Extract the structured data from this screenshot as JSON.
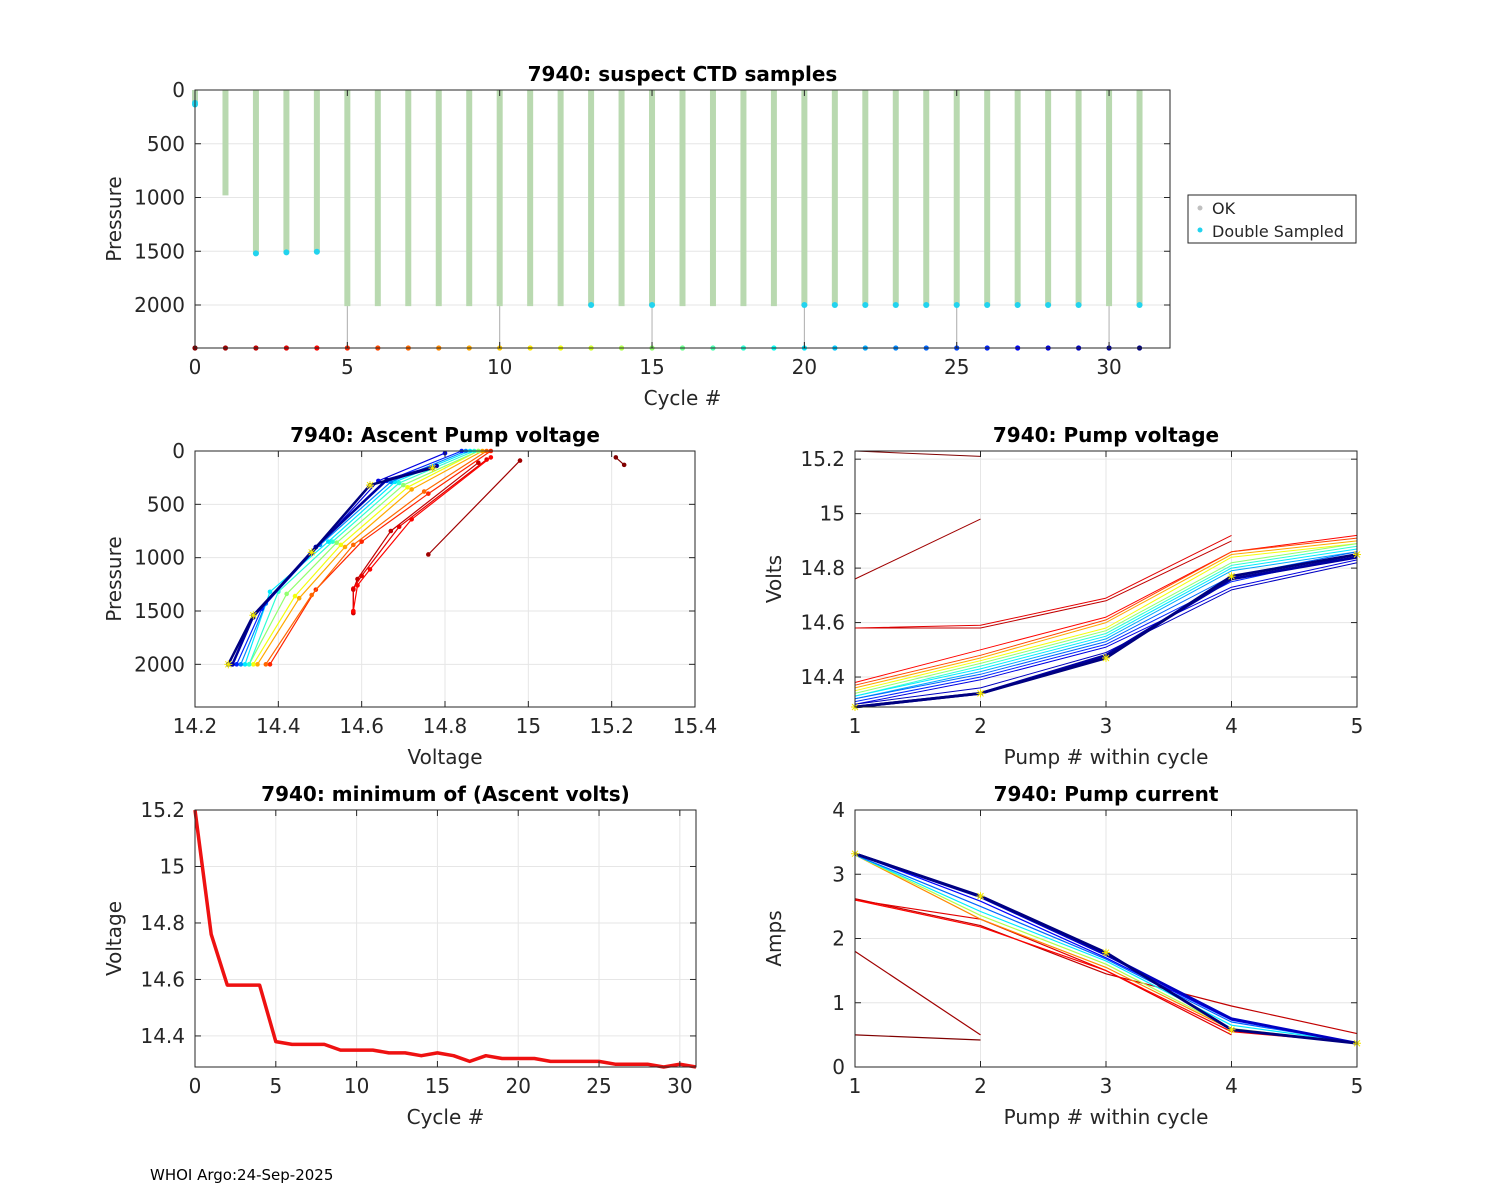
{
  "footer": "WHOI Argo:24-Sep-2025",
  "chart_data": [
    {
      "id": "suspect",
      "type": "scatter",
      "title": "7940: suspect CTD samples",
      "xlabel": "Cycle #",
      "ylabel": "Pressure",
      "xlim": [
        0,
        32
      ],
      "ylim": [
        0,
        2400
      ],
      "y_reversed": true,
      "xticks": [
        0,
        5,
        10,
        15,
        20,
        25,
        30
      ],
      "yticks": [
        0,
        500,
        1000,
        1500,
        2000
      ],
      "legend": [
        "OK",
        "Double Sampled"
      ],
      "legend_position": "outside-right",
      "ok_color": "#b9d9b0",
      "double_color": "#22d3ee",
      "series": [
        {
          "name": "OK",
          "cycles": [
            0,
            1,
            2,
            3,
            4,
            5,
            6,
            7,
            8,
            9,
            10,
            11,
            12,
            13,
            14,
            15,
            16,
            17,
            18,
            19,
            20,
            21,
            22,
            23,
            24,
            25,
            26,
            27,
            28,
            29,
            30,
            31
          ],
          "max_pressure": [
            110,
            980,
            1520,
            1510,
            1510,
            2010,
            2010,
            2010,
            2010,
            2010,
            2010,
            2010,
            2010,
            2010,
            2010,
            2010,
            2010,
            2010,
            2010,
            2010,
            2010,
            2010,
            2010,
            2010,
            2010,
            2010,
            2010,
            2010,
            2010,
            2010,
            2010,
            2010
          ]
        },
        {
          "name": "Double Sampled",
          "points": [
            [
              0,
              120
            ],
            [
              0,
              135
            ],
            [
              2,
              1520
            ],
            [
              3,
              1510
            ],
            [
              4,
              1505
            ],
            [
              13,
              2000
            ],
            [
              15,
              2000
            ],
            [
              20,
              2000
            ],
            [
              21,
              2000
            ],
            [
              22,
              2000
            ],
            [
              23,
              2000
            ],
            [
              24,
              2000
            ],
            [
              25,
              2000
            ],
            [
              26,
              2000
            ],
            [
              27,
              2000
            ],
            [
              28,
              2000
            ],
            [
              29,
              2000
            ],
            [
              31,
              2000
            ]
          ]
        }
      ],
      "baseline_pressure": 2400,
      "stems_to_baseline": [
        5,
        10,
        15,
        20,
        25,
        30
      ]
    },
    {
      "id": "ascent",
      "type": "line",
      "title": "7940: Ascent Pump voltage",
      "xlabel": "Voltage",
      "ylabel": "Pressure",
      "xlim": [
        14.2,
        15.4
      ],
      "ylim": [
        0,
        2400
      ],
      "y_reversed": true,
      "xticks": [
        14.2,
        14.4,
        14.6,
        14.8,
        15,
        15.2,
        15.4
      ],
      "yticks": [
        0,
        500,
        1000,
        1500,
        2000
      ],
      "series": [
        {
          "cycle": 0,
          "points": [
            [
              15.21,
              60
            ],
            [
              15.23,
              130
            ]
          ]
        },
        {
          "cycle": 1,
          "points": [
            [
              14.76,
              970
            ],
            [
              14.98,
              90
            ]
          ]
        },
        {
          "cycle": 2,
          "points": [
            [
              14.58,
              1520
            ],
            [
              14.58,
              1300
            ],
            [
              14.59,
              1200
            ],
            [
              14.67,
              750
            ],
            [
              14.88,
              110
            ]
          ]
        },
        {
          "cycle": 3,
          "points": [
            [
              14.58,
              1510
            ],
            [
              14.58,
              1290
            ],
            [
              14.6,
              1170
            ],
            [
              14.69,
              710
            ],
            [
              14.9,
              80
            ]
          ]
        },
        {
          "cycle": 4,
          "points": [
            [
              14.58,
              1500
            ],
            [
              14.59,
              1260
            ],
            [
              14.62,
              1110
            ],
            [
              14.72,
              640
            ],
            [
              14.91,
              60
            ]
          ]
        },
        {
          "cycle": 5,
          "points": [
            [
              14.38,
              2000
            ],
            [
              14.49,
              1300
            ],
            [
              14.6,
              850
            ],
            [
              14.76,
              400
            ],
            [
              14.91,
              0
            ]
          ]
        },
        {
          "cycle": 7,
          "points": [
            [
              14.37,
              2000
            ],
            [
              14.48,
              1350
            ],
            [
              14.58,
              880
            ],
            [
              14.75,
              380
            ],
            [
              14.9,
              0
            ]
          ]
        },
        {
          "cycle": 9,
          "points": [
            [
              14.35,
              2000
            ],
            [
              14.45,
              1380
            ],
            [
              14.56,
              900
            ],
            [
              14.72,
              360
            ],
            [
              14.89,
              0
            ]
          ]
        },
        {
          "cycle": 12,
          "points": [
            [
              14.34,
              2000
            ],
            [
              14.44,
              1360
            ],
            [
              14.55,
              880
            ],
            [
              14.71,
              340
            ],
            [
              14.88,
              0
            ]
          ]
        },
        {
          "cycle": 15,
          "points": [
            [
              14.33,
              2000
            ],
            [
              14.42,
              1340
            ],
            [
              14.54,
              860
            ],
            [
              14.7,
              320
            ],
            [
              14.88,
              0
            ]
          ]
        },
        {
          "cycle": 18,
          "points": [
            [
              14.33,
              2000
            ],
            [
              14.4,
              1320
            ],
            [
              14.53,
              850
            ],
            [
              14.69,
              300
            ],
            [
              14.87,
              0
            ]
          ]
        },
        {
          "cycle": 20,
          "points": [
            [
              14.32,
              2000
            ],
            [
              14.38,
              1320
            ],
            [
              14.52,
              850
            ],
            [
              14.68,
              290
            ],
            [
              14.86,
              0
            ]
          ]
        },
        {
          "cycle": 23,
          "points": [
            [
              14.31,
              2000
            ],
            [
              14.37,
              1430
            ],
            [
              14.5,
              880
            ],
            [
              14.67,
              290
            ],
            [
              14.85,
              0
            ]
          ]
        },
        {
          "cycle": 26,
          "points": [
            [
              14.3,
              2000
            ],
            [
              14.36,
              1480
            ],
            [
              14.49,
              900
            ],
            [
              14.66,
              280
            ],
            [
              14.84,
              0
            ]
          ]
        },
        {
          "cycle": 28,
          "points": [
            [
              14.29,
              2000
            ],
            [
              14.34,
              1560
            ],
            [
              14.48,
              960
            ],
            [
              14.64,
              280
            ],
            [
              14.8,
              20
            ]
          ]
        },
        {
          "cycle": 30,
          "points": [
            [
              14.29,
              2000
            ],
            [
              14.34,
              1550
            ],
            [
              14.49,
              900
            ],
            [
              14.66,
              270
            ],
            [
              14.78,
              140
            ]
          ]
        },
        {
          "cycle": 31,
          "points": [
            [
              14.28,
              2000
            ],
            [
              14.34,
              1540
            ],
            [
              14.48,
              950
            ],
            [
              14.62,
              320
            ],
            [
              14.77,
              160
            ]
          ]
        }
      ]
    },
    {
      "id": "pumpvolts",
      "type": "line",
      "title": "7940: Pump voltage",
      "xlabel": "Pump # within cycle",
      "ylabel": "Volts",
      "xlim": [
        1,
        5
      ],
      "ylim": [
        14.29,
        15.23
      ],
      "xticks": [
        1,
        2,
        3,
        4,
        5
      ],
      "yticks": [
        14.4,
        14.6,
        14.8,
        15,
        15.2
      ],
      "series": [
        {
          "cycle": 0,
          "values": [
            15.23,
            15.21
          ]
        },
        {
          "cycle": 1,
          "values": [
            14.76,
            14.98
          ]
        },
        {
          "cycle": 2,
          "values": [
            14.58,
            14.58,
            14.68,
            14.9
          ]
        },
        {
          "cycle": 3,
          "values": [
            14.58,
            14.59,
            14.69,
            14.92
          ]
        },
        {
          "cycle": 4,
          "values": [
            14.38,
            14.5,
            14.62,
            14.86,
            14.92
          ]
        },
        {
          "cycle": 6,
          "values": [
            14.37,
            14.48,
            14.61,
            14.86,
            14.91
          ]
        },
        {
          "cycle": 9,
          "values": [
            14.36,
            14.47,
            14.6,
            14.85,
            14.9
          ]
        },
        {
          "cycle": 12,
          "values": [
            14.35,
            14.46,
            14.58,
            14.84,
            14.89
          ]
        },
        {
          "cycle": 15,
          "values": [
            14.34,
            14.45,
            14.57,
            14.82,
            14.89
          ]
        },
        {
          "cycle": 18,
          "values": [
            14.33,
            14.44,
            14.56,
            14.81,
            14.88
          ]
        },
        {
          "cycle": 20,
          "values": [
            14.33,
            14.43,
            14.55,
            14.8,
            14.87
          ]
        },
        {
          "cycle": 22,
          "values": [
            14.32,
            14.42,
            14.54,
            14.79,
            14.86
          ]
        },
        {
          "cycle": 24,
          "values": [
            14.32,
            14.41,
            14.53,
            14.77,
            14.86
          ]
        },
        {
          "cycle": 26,
          "values": [
            14.31,
            14.4,
            14.52,
            14.75,
            14.85
          ]
        },
        {
          "cycle": 28,
          "values": [
            14.3,
            14.39,
            14.51,
            14.73,
            14.83
          ]
        },
        {
          "cycle": 29,
          "values": [
            14.3,
            14.36,
            14.49,
            14.72,
            14.82
          ]
        },
        {
          "cycle": 30,
          "values": [
            14.29,
            14.34,
            14.48,
            14.76,
            14.84
          ]
        },
        {
          "cycle": 31,
          "values": [
            14.29,
            14.34,
            14.47,
            14.77,
            14.85
          ]
        }
      ]
    },
    {
      "id": "minvolts",
      "type": "line",
      "title": "7940: minimum of (Ascent volts)",
      "xlabel": "Cycle #",
      "ylabel": "Voltage",
      "xlim": [
        0,
        31
      ],
      "ylim": [
        14.29,
        15.2
      ],
      "xticks": [
        0,
        5,
        10,
        15,
        20,
        25,
        30
      ],
      "yticks": [
        14.4,
        14.6,
        14.8,
        15,
        15.2
      ],
      "x": [
        0,
        1,
        2,
        3,
        4,
        5,
        6,
        7,
        8,
        9,
        10,
        11,
        12,
        13,
        14,
        15,
        16,
        17,
        18,
        19,
        20,
        21,
        22,
        23,
        24,
        25,
        26,
        27,
        28,
        29,
        30,
        31
      ],
      "values": [
        15.2,
        14.76,
        14.58,
        14.58,
        14.58,
        14.38,
        14.37,
        14.37,
        14.37,
        14.35,
        14.35,
        14.35,
        14.34,
        14.34,
        14.33,
        14.34,
        14.33,
        14.31,
        14.33,
        14.32,
        14.32,
        14.32,
        14.31,
        14.31,
        14.31,
        14.31,
        14.3,
        14.3,
        14.3,
        14.29,
        14.3,
        14.29
      ],
      "color": "#ee1111"
    },
    {
      "id": "pumpcurrent",
      "type": "line",
      "title": "7940: Pump current",
      "xlabel": "Pump # within cycle",
      "ylabel": "Amps",
      "xlim": [
        1,
        5
      ],
      "ylim": [
        0,
        4
      ],
      "xticks": [
        1,
        2,
        3,
        4,
        5
      ],
      "yticks": [
        0,
        1,
        2,
        3,
        4
      ],
      "series": [
        {
          "cycle": 0,
          "values": [
            0.5,
            0.42
          ]
        },
        {
          "cycle": 1,
          "values": [
            1.8,
            0.5
          ]
        },
        {
          "cycle": 2,
          "values": [
            2.62,
            2.2,
            1.45,
            0.95,
            0.52
          ]
        },
        {
          "cycle": 3,
          "values": [
            2.6,
            2.3,
            1.5,
            0.5
          ]
        },
        {
          "cycle": 4,
          "values": [
            2.6,
            2.18,
            1.5,
            0.55,
            0.38
          ]
        },
        {
          "cycle": 8,
          "values": [
            3.3,
            2.3,
            1.55,
            0.58,
            0.37
          ]
        },
        {
          "cycle": 14,
          "values": [
            3.3,
            2.36,
            1.6,
            0.6,
            0.37
          ]
        },
        {
          "cycle": 20,
          "values": [
            3.3,
            2.42,
            1.65,
            0.65,
            0.38
          ]
        },
        {
          "cycle": 24,
          "values": [
            3.3,
            2.5,
            1.68,
            0.7,
            0.38
          ]
        },
        {
          "cycle": 27,
          "values": [
            3.32,
            2.58,
            1.7,
            0.73,
            0.37
          ]
        },
        {
          "cycle": 29,
          "values": [
            3.32,
            2.65,
            1.75,
            0.75,
            0.37
          ]
        },
        {
          "cycle": 31,
          "values": [
            3.32,
            2.66,
            1.78,
            0.58,
            0.37
          ]
        }
      ]
    }
  ]
}
